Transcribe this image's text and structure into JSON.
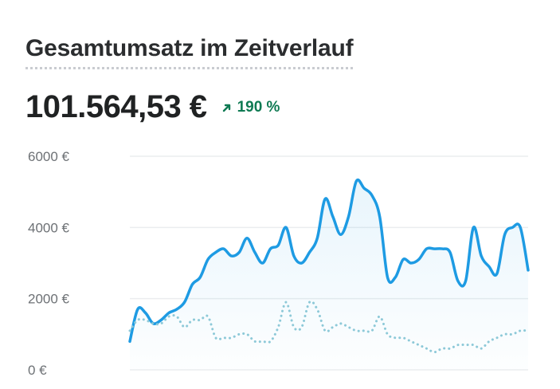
{
  "header": {
    "title": "Gesamtumsatz im Zeitverlauf",
    "total": "101.564,53 €",
    "change": "190 %"
  },
  "colors": {
    "primary": "#1e9be3",
    "comparison": "#8dc9d8",
    "positive": "#0f7a53"
  },
  "chart_data": {
    "type": "line",
    "ylim": [
      0,
      6000
    ],
    "yticks": [
      {
        "value": 6000,
        "label": "6000 €"
      },
      {
        "value": 4000,
        "label": "4000 €"
      },
      {
        "value": 2000,
        "label": "2000 €"
      },
      {
        "value": 0,
        "label": "0 €"
      }
    ],
    "grid": true,
    "series": [
      {
        "style": "solid",
        "values": [
          800,
          1700,
          1600,
          1300,
          1400,
          1600,
          1700,
          1900,
          2400,
          2600,
          3100,
          3300,
          3400,
          3200,
          3300,
          3700,
          3300,
          3000,
          3400,
          3500,
          4000,
          3200,
          3000,
          3300,
          3700,
          4800,
          4300,
          3800,
          4300,
          5300,
          5100,
          4900,
          4300,
          2600,
          2600,
          3100,
          3000,
          3100,
          3400,
          3400,
          3400,
          3300,
          2500,
          2500,
          4000,
          3200,
          2900,
          2700,
          3800,
          4000,
          4000,
          2800
        ]
      },
      {
        "style": "dotted",
        "values": [
          1100,
          1400,
          1400,
          1300,
          1300,
          1500,
          1500,
          1200,
          1400,
          1400,
          1500,
          900,
          900,
          900,
          1000,
          1000,
          800,
          800,
          800,
          1200,
          1900,
          1200,
          1200,
          1900,
          1700,
          1100,
          1200,
          1300,
          1200,
          1100,
          1100,
          1100,
          1500,
          1000,
          900,
          900,
          800,
          700,
          600,
          500,
          600,
          600,
          700,
          700,
          700,
          600,
          800,
          900,
          1000,
          1000,
          1100,
          1100
        ]
      }
    ]
  }
}
